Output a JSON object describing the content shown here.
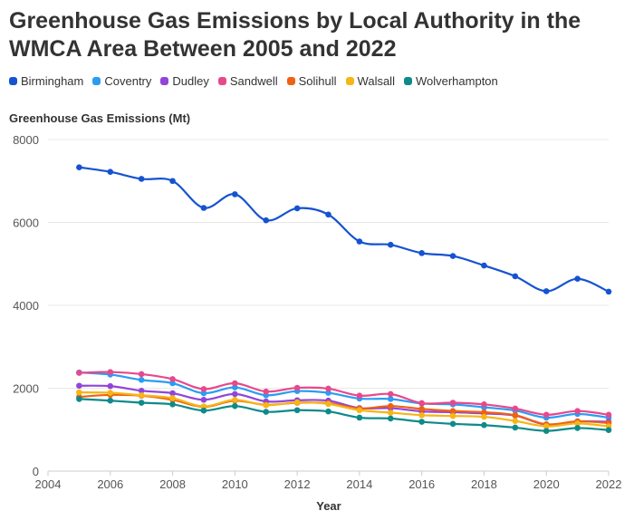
{
  "chart_data": {
    "type": "line",
    "title": "Greenhouse Gas Emissions by Local Authority in the WMCA Area Between 2005 and 2022",
    "ylabel": "Greenhouse Gas Emissions (Mt)",
    "xlabel": "Year",
    "xlim": [
      2004,
      2022
    ],
    "ylim": [
      0,
      8000
    ],
    "xticks": [
      2004,
      2006,
      2008,
      2010,
      2012,
      2014,
      2016,
      2018,
      2020,
      2022
    ],
    "yticks": [
      0,
      2000,
      4000,
      6000,
      8000
    ],
    "x": [
      2005,
      2006,
      2007,
      2008,
      2009,
      2010,
      2011,
      2012,
      2013,
      2014,
      2015,
      2016,
      2017,
      2018,
      2019,
      2020,
      2021,
      2022
    ],
    "series": [
      {
        "name": "Birmingham",
        "color": "#1553d1",
        "values": [
          7330,
          7220,
          7050,
          7000,
          6350,
          6680,
          6050,
          6340,
          6190,
          5540,
          5460,
          5260,
          5190,
          4960,
          4700,
          4340,
          4640,
          4330
        ]
      },
      {
        "name": "Coventry",
        "color": "#2b9cf2",
        "values": [
          2380,
          2330,
          2200,
          2120,
          1880,
          2020,
          1830,
          1930,
          1890,
          1750,
          1740,
          1630,
          1610,
          1540,
          1460,
          1290,
          1380,
          1290
        ]
      },
      {
        "name": "Dudley",
        "color": "#9145d9",
        "values": [
          2060,
          2050,
          1940,
          1880,
          1720,
          1860,
          1680,
          1710,
          1700,
          1520,
          1520,
          1440,
          1420,
          1390,
          1340,
          1120,
          1200,
          1190
        ]
      },
      {
        "name": "Sandwell",
        "color": "#e8488c",
        "values": [
          2370,
          2390,
          2340,
          2220,
          1980,
          2120,
          1920,
          2010,
          1990,
          1820,
          1860,
          1640,
          1650,
          1610,
          1510,
          1360,
          1450,
          1360
        ]
      },
      {
        "name": "Solihull",
        "color": "#f06113",
        "values": [
          1790,
          1840,
          1820,
          1720,
          1550,
          1700,
          1600,
          1650,
          1640,
          1510,
          1570,
          1500,
          1450,
          1420,
          1350,
          1130,
          1200,
          1160
        ]
      },
      {
        "name": "Walsall",
        "color": "#f5b616",
        "values": [
          1900,
          1890,
          1830,
          1760,
          1560,
          1720,
          1590,
          1660,
          1620,
          1470,
          1410,
          1350,
          1330,
          1310,
          1210,
          1080,
          1150,
          1080
        ]
      },
      {
        "name": "Wolverhampton",
        "color": "#0f8a8a",
        "values": [
          1740,
          1700,
          1650,
          1610,
          1460,
          1570,
          1430,
          1470,
          1440,
          1290,
          1270,
          1190,
          1140,
          1110,
          1050,
          970,
          1040,
          990
        ]
      }
    ]
  }
}
